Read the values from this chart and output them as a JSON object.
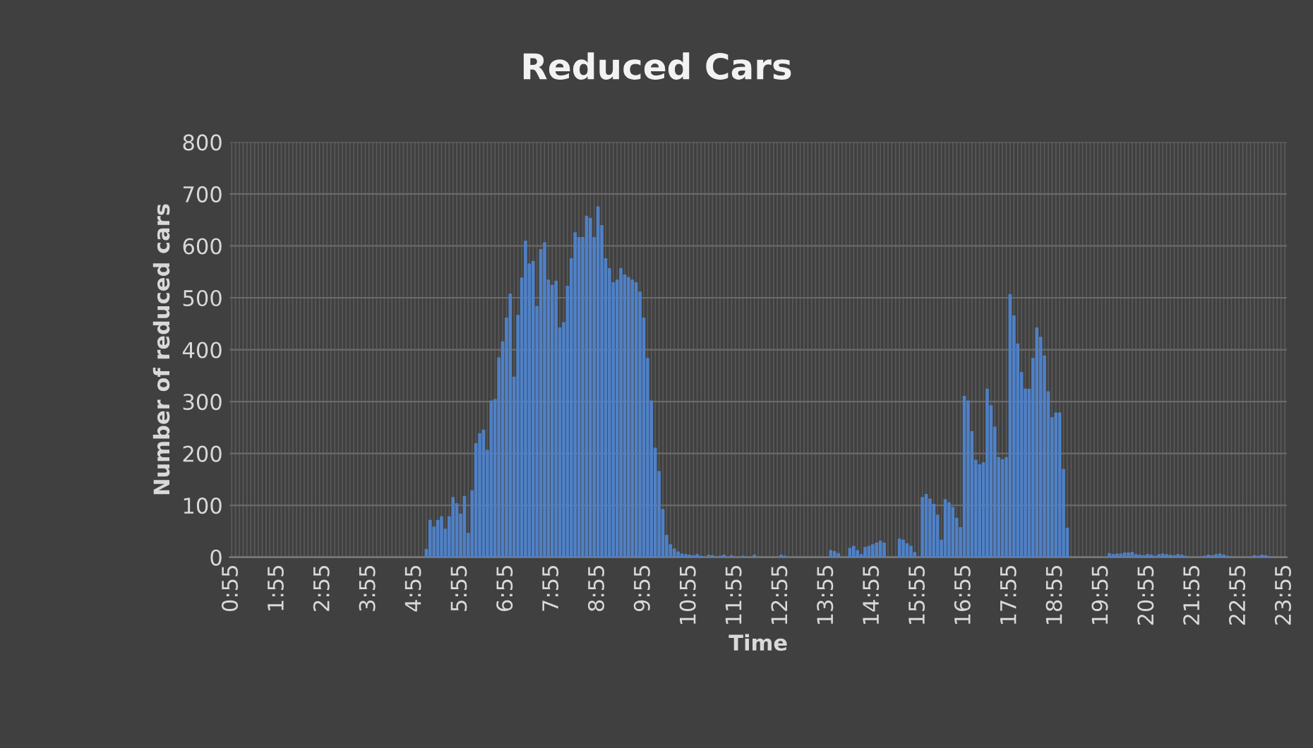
{
  "chart_data": {
    "type": "bar",
    "title": "Reduced Cars",
    "xlabel": "Time",
    "ylabel": "Number of reduced cars",
    "categories": [
      "0:55",
      null,
      null,
      null,
      null,
      null,
      null,
      null,
      null,
      null,
      null,
      null,
      "1:55",
      null,
      null,
      null,
      null,
      null,
      null,
      null,
      null,
      null,
      null,
      null,
      "2:55",
      null,
      null,
      null,
      null,
      null,
      null,
      null,
      null,
      null,
      null,
      null,
      "3:55",
      null,
      null,
      null,
      null,
      null,
      null,
      null,
      null,
      null,
      null,
      null,
      "4:55",
      null,
      null,
      null,
      null,
      null,
      null,
      null,
      null,
      null,
      null,
      null,
      "5:55",
      null,
      null,
      null,
      null,
      null,
      null,
      null,
      null,
      null,
      null,
      null,
      "6:55",
      null,
      null,
      null,
      null,
      null,
      null,
      null,
      null,
      null,
      null,
      null,
      "7:55",
      null,
      null,
      null,
      null,
      null,
      null,
      null,
      null,
      null,
      null,
      null,
      "8:55",
      null,
      null,
      null,
      null,
      null,
      null,
      null,
      null,
      null,
      null,
      null,
      "9:55",
      null,
      null,
      null,
      null,
      null,
      null,
      null,
      null,
      null,
      null,
      null,
      "10:55",
      null,
      null,
      null,
      null,
      null,
      null,
      null,
      null,
      null,
      null,
      null,
      "11:55",
      null,
      null,
      null,
      null,
      null,
      null,
      null,
      null,
      null,
      null,
      null,
      "12:55",
      null,
      null,
      null,
      null,
      null,
      null,
      null,
      null,
      null,
      null,
      null,
      "13:55",
      null,
      null,
      null,
      null,
      null,
      null,
      null,
      null,
      null,
      null,
      null,
      "14:55",
      null,
      null,
      null,
      null,
      null,
      null,
      null,
      null,
      null,
      null,
      null,
      "15:55",
      null,
      null,
      null,
      null,
      null,
      null,
      null,
      null,
      null,
      null,
      null,
      "16:55",
      null,
      null,
      null,
      null,
      null,
      null,
      null,
      null,
      null,
      null,
      null,
      "17:55",
      null,
      null,
      null,
      null,
      null,
      null,
      null,
      null,
      null,
      null,
      null,
      "18:55",
      null,
      null,
      null,
      null,
      null,
      null,
      null,
      null,
      null,
      null,
      null,
      "19:55",
      null,
      null,
      null,
      null,
      null,
      null,
      null,
      null,
      null,
      null,
      null,
      "20:55",
      null,
      null,
      null,
      null,
      null,
      null,
      null,
      null,
      null,
      null,
      null,
      "21:55",
      null,
      null,
      null,
      null,
      null,
      null,
      null,
      null,
      null,
      null,
      null,
      "22:55",
      null,
      null,
      null,
      null,
      null,
      null,
      null,
      null,
      null,
      null,
      null,
      "23:55"
    ],
    "values": [
      0,
      0,
      0,
      0,
      0,
      0,
      0,
      0,
      0,
      0,
      0,
      0,
      0,
      0,
      0,
      0,
      0,
      0,
      0,
      0,
      0,
      0,
      0,
      0,
      0,
      0,
      0,
      0,
      0,
      0,
      0,
      0,
      0,
      0,
      0,
      0,
      0,
      0,
      0,
      0,
      0,
      0,
      0,
      0,
      0,
      0,
      0,
      0,
      0,
      0,
      0,
      16,
      72,
      59,
      72,
      79,
      55,
      79,
      116,
      104,
      84,
      118,
      47,
      129,
      220,
      239,
      246,
      207,
      302,
      305,
      385,
      416,
      462,
      508,
      348,
      467,
      539,
      610,
      566,
      571,
      484,
      594,
      607,
      535,
      525,
      533,
      443,
      453,
      523,
      576,
      626,
      617,
      617,
      658,
      654,
      617,
      676,
      640,
      576,
      557,
      530,
      535,
      557,
      545,
      540,
      535,
      530,
      512,
      462,
      384,
      302,
      211,
      166,
      93,
      43,
      25,
      17,
      11,
      7,
      6,
      5,
      4,
      6,
      3,
      0,
      5,
      4,
      0,
      3,
      5,
      0,
      4,
      0,
      0,
      3,
      0,
      0,
      5,
      0,
      0,
      0,
      0,
      0,
      0,
      5,
      3,
      0,
      0,
      0,
      0,
      0,
      0,
      0,
      0,
      0,
      0,
      0,
      14,
      12,
      8,
      0,
      0,
      18,
      22,
      14,
      6,
      20,
      22,
      25,
      28,
      32,
      28,
      0,
      0,
      0,
      36,
      34,
      27,
      22,
      10,
      0,
      116,
      122,
      113,
      103,
      82,
      34,
      112,
      106,
      97,
      76,
      58,
      311,
      302,
      243,
      188,
      179,
      183,
      325,
      293,
      252,
      193,
      189,
      193,
      507,
      466,
      412,
      357,
      325,
      325,
      384,
      443,
      425,
      389,
      320,
      270,
      279,
      279,
      170,
      57,
      0,
      0,
      0,
      0,
      0,
      0,
      0,
      0,
      0,
      0,
      8,
      6,
      7,
      7,
      9,
      9,
      10,
      6,
      5,
      4,
      6,
      5,
      3,
      6,
      7,
      6,
      5,
      4,
      6,
      5,
      3,
      0,
      0,
      0,
      0,
      3,
      5,
      4,
      6,
      7,
      5,
      3,
      0,
      0,
      0,
      0,
      0,
      0,
      4,
      3,
      5,
      4,
      2,
      0,
      0,
      0,
      0
    ],
    "color": "#4f81c7",
    "ylim": [
      0,
      800
    ],
    "yticks": [
      0,
      100,
      200,
      300,
      400,
      500,
      600,
      700,
      800
    ],
    "grid": true
  }
}
